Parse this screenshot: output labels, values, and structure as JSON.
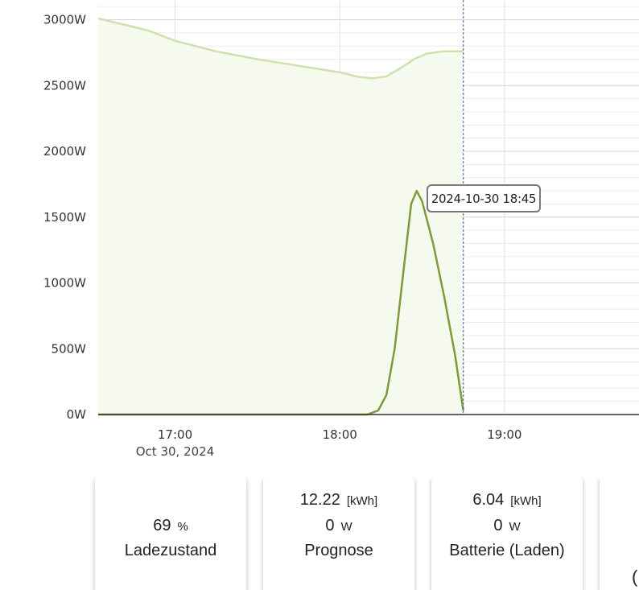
{
  "chart_data": {
    "type": "area",
    "y_ticks": [
      "0W",
      "500W",
      "1000W",
      "1500W",
      "2000W",
      "2500W",
      "3000W"
    ],
    "y_tick_values": [
      0,
      500,
      1000,
      1500,
      2000,
      2500,
      3000
    ],
    "x_ticks": [
      "17:00",
      "18:00",
      "19:00"
    ],
    "x_date_label": "Oct 30, 2024",
    "ylim": [
      0,
      3150
    ],
    "xlim": [
      "16:32",
      "19:49"
    ],
    "grid": true,
    "series": [
      {
        "color": "#cde2ad",
        "fill": "#f5f9ee",
        "points": [
          [
            "16:32",
            3010
          ],
          [
            "16:50",
            2920
          ],
          [
            "17:00",
            2840
          ],
          [
            "17:15",
            2760
          ],
          [
            "17:30",
            2700
          ],
          [
            "17:45",
            2650
          ],
          [
            "18:00",
            2600
          ],
          [
            "18:07",
            2565
          ],
          [
            "18:12",
            2555
          ],
          [
            "18:17",
            2570
          ],
          [
            "18:22",
            2630
          ],
          [
            "18:27",
            2700
          ],
          [
            "18:32",
            2745
          ],
          [
            "18:38",
            2760
          ],
          [
            "18:45",
            2760
          ]
        ]
      },
      {
        "color": "#7e9a3a",
        "points": [
          [
            "16:32",
            0
          ],
          [
            "18:00",
            0
          ],
          [
            "18:10",
            0
          ],
          [
            "18:14",
            30
          ],
          [
            "18:17",
            150
          ],
          [
            "18:20",
            500
          ],
          [
            "18:23",
            1050
          ],
          [
            "18:26",
            1600
          ],
          [
            "18:28",
            1700
          ],
          [
            "18:30",
            1620
          ],
          [
            "18:34",
            1300
          ],
          [
            "18:38",
            900
          ],
          [
            "18:42",
            450
          ],
          [
            "18:45",
            30
          ]
        ]
      }
    ],
    "cursor_time": "18:45",
    "tooltip": "2024-10-30  18:45"
  },
  "cards": [
    {
      "rows": [
        {
          "value": "69",
          "unit": "%"
        }
      ],
      "label": "Ladezustand"
    },
    {
      "rows": [
        {
          "value": "12.22",
          "unit": "[kWh]"
        },
        {
          "value": "0",
          "unit": "W"
        }
      ],
      "label": "Prognose"
    },
    {
      "rows": [
        {
          "value": "6.04",
          "unit": "[kWh]"
        },
        {
          "value": "0",
          "unit": "W"
        }
      ],
      "label": "Batterie (Laden)"
    }
  ],
  "partial_card_glyph": "("
}
